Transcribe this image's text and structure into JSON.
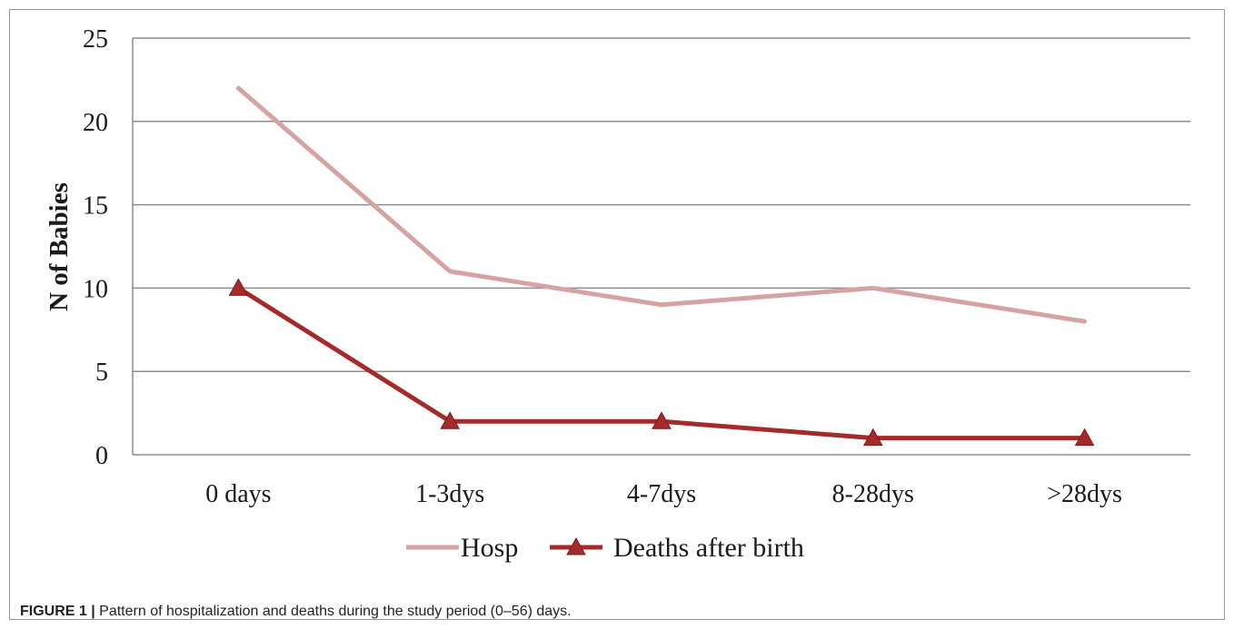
{
  "chart_data": {
    "type": "line",
    "categories": [
      "0 days",
      "1-3dys",
      "4-7dys",
      "8-28dys",
      ">28dys"
    ],
    "series": [
      {
        "name": "Hosp",
        "values": [
          22,
          11,
          9,
          10,
          8
        ],
        "color": "#d6a3a3",
        "marker": "none"
      },
      {
        "name": "Deaths after birth",
        "values": [
          10,
          2,
          2,
          1,
          1
        ],
        "color": "#a52a2a",
        "marker": "triangle"
      }
    ],
    "title": "",
    "xlabel": "",
    "ylabel": "N of Babies",
    "ylim": [
      0,
      25
    ],
    "yticks": [
      0,
      5,
      10,
      15,
      20,
      25
    ],
    "grid": true,
    "legend_position": "bottom"
  },
  "caption": {
    "label": "FIGURE 1 |",
    "text": " Pattern of hospitalization and deaths during the study period (0–56) days."
  }
}
